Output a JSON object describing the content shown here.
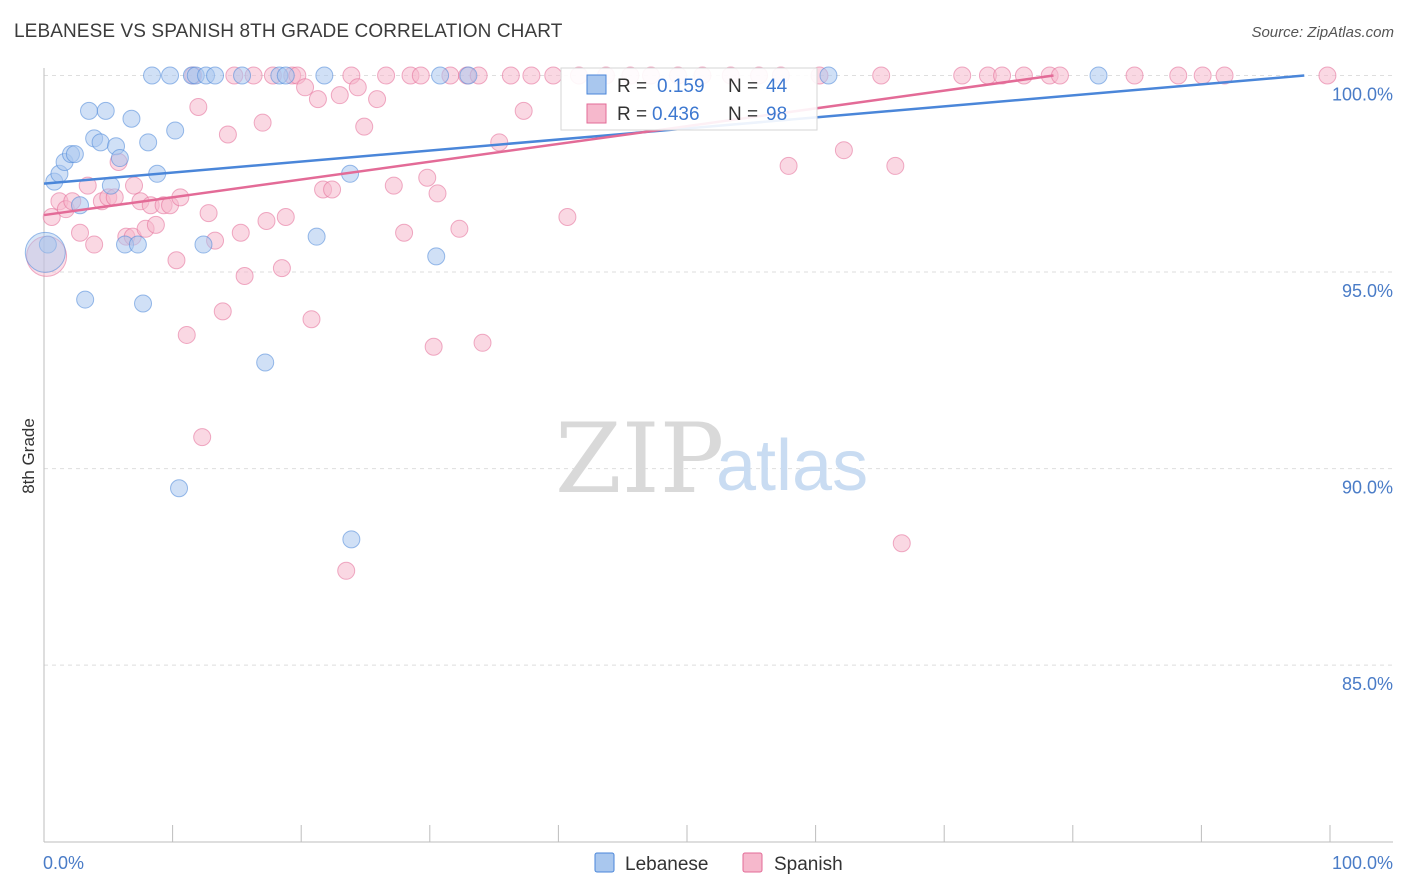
{
  "header": {
    "title": "LEBANESE VS SPANISH 8TH GRADE CORRELATION CHART",
    "source": "Source: ZipAtlas.com"
  },
  "watermark": {
    "part1": "ZIP",
    "part2": "atlas"
  },
  "chart_data": {
    "type": "scatter",
    "title": "LEBANESE VS SPANISH 8TH GRADE CORRELATION CHART",
    "xlabel": "",
    "ylabel": "8th Grade",
    "xlim": [
      0,
      100
    ],
    "ylim": [
      80.5,
      100.7
    ],
    "x_tick_labels": {
      "left": "0.0%",
      "right": "100.0%"
    },
    "y_ticks": [
      {
        "value": 100,
        "label": "100.0%"
      },
      {
        "value": 95,
        "label": "95.0%"
      },
      {
        "value": 90,
        "label": "90.0%"
      },
      {
        "value": 85,
        "label": "85.0%"
      }
    ],
    "grid": true,
    "stats_box": {
      "rows": [
        {
          "series": "Lebanese",
          "r_label": "R =",
          "r_value": "0.159",
          "n_label": "N =",
          "n_value": "44"
        },
        {
          "series": "Spanish",
          "r_label": "R =",
          "r_value": "0.436",
          "n_label": "N =",
          "n_value": "98"
        }
      ]
    },
    "legend": {
      "placement": "bottom-center",
      "entries": [
        "Lebanese",
        "Spanish"
      ]
    },
    "series": [
      {
        "name": "Lebanese",
        "color": "#4a86d9",
        "fill": "#a9c7ee",
        "trend": {
          "x": [
            0,
            98
          ],
          "y": [
            97.25,
            100.0
          ]
        },
        "points": [
          [
            0.3,
            95.7
          ],
          [
            0.8,
            97.3
          ],
          [
            1.2,
            97.5
          ],
          [
            1.6,
            97.8
          ],
          [
            2.1,
            98.0
          ],
          [
            2.4,
            98.0
          ],
          [
            2.8,
            96.7
          ],
          [
            3.2,
            94.3
          ],
          [
            3.5,
            99.1
          ],
          [
            3.9,
            98.4
          ],
          [
            4.4,
            98.3
          ],
          [
            4.8,
            99.1
          ],
          [
            5.2,
            97.2
          ],
          [
            5.6,
            98.2
          ],
          [
            5.9,
            97.9
          ],
          [
            6.3,
            95.7
          ],
          [
            6.8,
            98.9
          ],
          [
            7.3,
            95.7
          ],
          [
            7.7,
            94.2
          ],
          [
            8.1,
            98.3
          ],
          [
            8.4,
            100.0
          ],
          [
            8.8,
            97.5
          ],
          [
            9.8,
            100.0
          ],
          [
            10.2,
            98.6
          ],
          [
            10.5,
            89.5
          ],
          [
            11.5,
            100.0
          ],
          [
            11.8,
            100.0
          ],
          [
            12.4,
            95.7
          ],
          [
            12.6,
            100.0
          ],
          [
            13.3,
            100.0
          ],
          [
            15.4,
            100.0
          ],
          [
            17.2,
            92.7
          ],
          [
            18.3,
            100.0
          ],
          [
            18.8,
            100.0
          ],
          [
            21.2,
            95.9
          ],
          [
            21.8,
            100.0
          ],
          [
            23.8,
            97.5
          ],
          [
            23.9,
            88.2
          ],
          [
            30.5,
            95.4
          ],
          [
            30.8,
            100.0
          ],
          [
            33.0,
            100.0
          ],
          [
            61.0,
            100.0
          ],
          [
            82.0,
            100.0
          ],
          [
            0.1,
            95.5
          ]
        ]
      },
      {
        "name": "Spanish",
        "color": "#e36b97",
        "fill": "#f6b8cc",
        "trend": {
          "x": [
            0,
            78.5
          ],
          "y": [
            96.45,
            100.0
          ]
        },
        "points": [
          [
            0.2,
            95.4
          ],
          [
            0.6,
            96.4
          ],
          [
            1.2,
            96.8
          ],
          [
            1.7,
            96.6
          ],
          [
            2.2,
            96.8
          ],
          [
            2.8,
            96.0
          ],
          [
            3.4,
            97.2
          ],
          [
            3.9,
            95.7
          ],
          [
            4.5,
            96.8
          ],
          [
            5.0,
            96.9
          ],
          [
            5.5,
            96.9
          ],
          [
            5.8,
            97.8
          ],
          [
            6.4,
            95.9
          ],
          [
            6.9,
            95.9
          ],
          [
            7.0,
            97.2
          ],
          [
            7.5,
            96.8
          ],
          [
            7.9,
            96.1
          ],
          [
            8.3,
            96.7
          ],
          [
            8.7,
            96.2
          ],
          [
            9.3,
            96.7
          ],
          [
            9.8,
            96.7
          ],
          [
            10.3,
            95.3
          ],
          [
            10.6,
            96.9
          ],
          [
            11.1,
            93.4
          ],
          [
            11.6,
            100.0
          ],
          [
            12.0,
            99.2
          ],
          [
            12.3,
            90.8
          ],
          [
            12.8,
            96.5
          ],
          [
            13.3,
            95.8
          ],
          [
            13.9,
            94.0
          ],
          [
            14.3,
            98.5
          ],
          [
            14.8,
            100.0
          ],
          [
            15.3,
            96.0
          ],
          [
            15.6,
            94.9
          ],
          [
            16.3,
            100.0
          ],
          [
            17.0,
            98.8
          ],
          [
            17.3,
            96.3
          ],
          [
            17.8,
            100.0
          ],
          [
            18.5,
            95.1
          ],
          [
            18.8,
            96.4
          ],
          [
            19.3,
            100.0
          ],
          [
            19.7,
            100.0
          ],
          [
            20.3,
            99.7
          ],
          [
            20.8,
            93.8
          ],
          [
            21.3,
            99.4
          ],
          [
            21.7,
            97.1
          ],
          [
            22.4,
            97.1
          ],
          [
            23.0,
            99.5
          ],
          [
            23.5,
            87.4
          ],
          [
            23.9,
            100.0
          ],
          [
            24.4,
            99.7
          ],
          [
            24.9,
            98.7
          ],
          [
            25.9,
            99.4
          ],
          [
            26.6,
            100.0
          ],
          [
            27.2,
            97.2
          ],
          [
            28.0,
            96.0
          ],
          [
            28.5,
            100.0
          ],
          [
            29.3,
            100.0
          ],
          [
            29.8,
            97.4
          ],
          [
            30.3,
            93.1
          ],
          [
            30.6,
            97.0
          ],
          [
            31.6,
            100.0
          ],
          [
            32.3,
            96.1
          ],
          [
            32.9,
            100.0
          ],
          [
            33.8,
            100.0
          ],
          [
            34.1,
            93.2
          ],
          [
            35.4,
            98.3
          ],
          [
            36.3,
            100.0
          ],
          [
            37.3,
            99.1
          ],
          [
            37.9,
            100.0
          ],
          [
            39.6,
            100.0
          ],
          [
            40.7,
            96.4
          ],
          [
            41.6,
            100.0
          ],
          [
            43.7,
            100.0
          ],
          [
            45.6,
            100.0
          ],
          [
            47.2,
            100.0
          ],
          [
            49.3,
            100.0
          ],
          [
            51.2,
            100.0
          ],
          [
            53.4,
            100.0
          ],
          [
            55.6,
            100.0
          ],
          [
            57.3,
            100.0
          ],
          [
            57.9,
            97.7
          ],
          [
            60.3,
            100.0
          ],
          [
            62.2,
            98.1
          ],
          [
            65.1,
            100.0
          ],
          [
            66.2,
            97.7
          ],
          [
            66.7,
            88.1
          ],
          [
            71.4,
            100.0
          ],
          [
            73.4,
            100.0
          ],
          [
            74.5,
            100.0
          ],
          [
            76.2,
            100.0
          ],
          [
            78.2,
            100.0
          ],
          [
            79.0,
            100.0
          ],
          [
            84.8,
            100.0
          ],
          [
            88.2,
            100.0
          ],
          [
            90.1,
            100.0
          ],
          [
            91.8,
            100.0
          ],
          [
            99.8,
            100.0
          ]
        ]
      }
    ]
  }
}
